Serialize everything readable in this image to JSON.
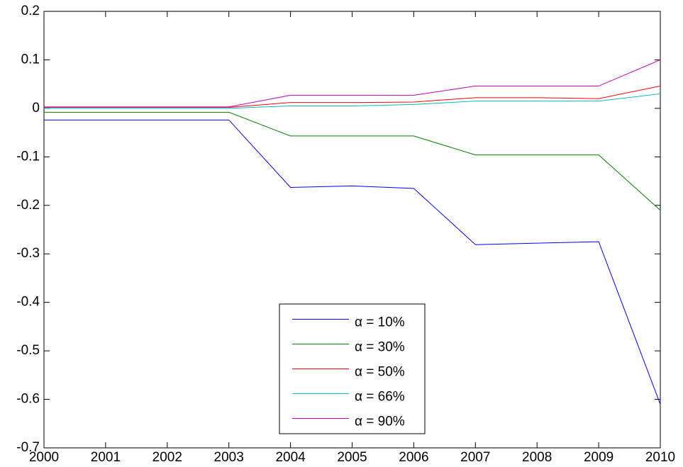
{
  "chart_data": {
    "type": "line",
    "x": [
      2000,
      2001,
      2002,
      2003,
      2004,
      2005,
      2006,
      2007,
      2008,
      2009,
      2010
    ],
    "series": [
      {
        "name": "α = 10%",
        "color": "#0000ff",
        "values": [
          -0.024,
          -0.024,
          -0.024,
          -0.024,
          -0.163,
          -0.16,
          -0.165,
          -0.281,
          -0.278,
          -0.275,
          -0.61
        ]
      },
      {
        "name": "α = 30%",
        "color": "#008000",
        "values": [
          -0.008,
          -0.008,
          -0.008,
          -0.008,
          -0.057,
          -0.057,
          -0.057,
          -0.096,
          -0.096,
          -0.096,
          -0.21
        ]
      },
      {
        "name": "α = 50%",
        "color": "#ff0000",
        "values": [
          0.002,
          0.002,
          0.002,
          0.002,
          0.012,
          0.012,
          0.013,
          0.022,
          0.022,
          0.02,
          0.046
        ]
      },
      {
        "name": "α = 66%",
        "color": "#00bfbf",
        "values": [
          0,
          0,
          0,
          0,
          0.005,
          0.005,
          0.008,
          0.015,
          0.015,
          0.015,
          0.03
        ]
      },
      {
        "name": "α = 90%",
        "color": "#bf00bf",
        "values": [
          0.003,
          0.003,
          0.003,
          0.003,
          0.027,
          0.027,
          0.027,
          0.046,
          0.046,
          0.046,
          0.1
        ]
      }
    ],
    "xlim": [
      2000,
      2010
    ],
    "xticks": [
      2000,
      2001,
      2002,
      2003,
      2004,
      2005,
      2006,
      2007,
      2008,
      2009,
      2010
    ],
    "ylim": [
      -0.7,
      0.2
    ],
    "yticks": [
      0.2,
      0.1,
      0,
      -0.1,
      -0.2,
      -0.3,
      -0.4,
      -0.5,
      -0.6,
      -0.7
    ],
    "grid": false,
    "legend": "south"
  }
}
